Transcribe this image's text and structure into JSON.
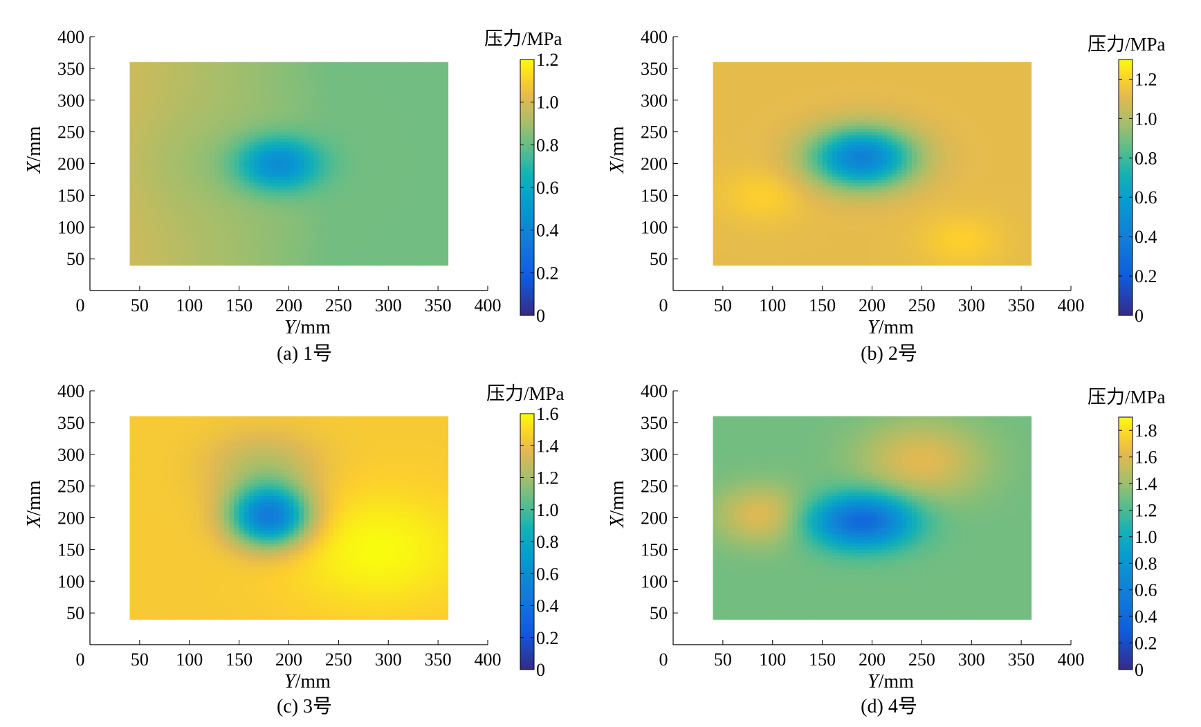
{
  "chart_data": [
    {
      "type": "heatmap",
      "caption": "(a)  1号",
      "xlabel_var": "Y",
      "xlabel_unit": "/mm",
      "ylabel_var": "X",
      "ylabel_unit": "/mm",
      "colorbar_title": "压力/MPa",
      "xlim": [
        0,
        400
      ],
      "ylim": [
        0,
        400
      ],
      "xticks": [
        0,
        50,
        100,
        150,
        200,
        250,
        300,
        350,
        400
      ],
      "yticks": [
        50,
        100,
        150,
        200,
        250,
        300,
        350,
        400
      ],
      "data_extent": {
        "y": [
          40,
          360
        ],
        "x": [
          40,
          360
        ]
      },
      "colorbar_range": [
        0,
        1.2
      ],
      "colorbar_ticks": [
        0,
        0.2,
        0.4,
        0.6,
        0.8,
        1.0,
        1.2
      ],
      "field": {
        "background": 0.82,
        "left_edge": 0.98,
        "center": {
          "y": 190,
          "x": 200,
          "value": 0.45,
          "radius_y": 45,
          "radius_x": 45
        },
        "bumps": [
          {
            "y": 140,
            "x": 200,
            "value": 0.88,
            "radius": 80
          }
        ]
      }
    },
    {
      "type": "heatmap",
      "caption": "(b)  2号",
      "xlabel_var": "Y",
      "xlabel_unit": "/mm",
      "ylabel_var": "X",
      "ylabel_unit": "/mm",
      "colorbar_title": "压力/MPa",
      "xlim": [
        0,
        400
      ],
      "ylim": [
        0,
        400
      ],
      "xticks": [
        0,
        50,
        100,
        150,
        200,
        250,
        300,
        350,
        400
      ],
      "yticks": [
        50,
        100,
        150,
        200,
        250,
        300,
        350,
        400
      ],
      "data_extent": {
        "y": [
          40,
          360
        ],
        "x": [
          40,
          360
        ]
      },
      "colorbar_range": [
        0,
        1.3
      ],
      "colorbar_ticks": [
        0,
        0.2,
        0.4,
        0.6,
        0.8,
        1.0,
        1.2
      ],
      "field": {
        "background": 1.12,
        "left_edge": 1.12,
        "center": {
          "y": 190,
          "x": 210,
          "value": 0.42,
          "radius_y": 55,
          "radius_x": 50
        },
        "bumps": [
          {
            "y": 90,
            "x": 150,
            "value": 1.2,
            "radius": 40
          },
          {
            "y": 290,
            "x": 80,
            "value": 1.2,
            "radius": 40
          }
        ]
      }
    },
    {
      "type": "heatmap",
      "caption": "(c)  3号",
      "xlabel_var": "Y",
      "xlabel_unit": "/mm",
      "ylabel_var": "X",
      "ylabel_unit": "/mm",
      "colorbar_title": "压力/MPa",
      "xlim": [
        0,
        400
      ],
      "ylim": [
        0,
        400
      ],
      "xticks": [
        0,
        50,
        100,
        150,
        200,
        250,
        300,
        350,
        400
      ],
      "yticks": [
        50,
        100,
        150,
        200,
        250,
        300,
        350,
        400
      ],
      "data_extent": {
        "y": [
          40,
          360
        ],
        "x": [
          40,
          360
        ]
      },
      "colorbar_range": [
        0,
        1.6
      ],
      "colorbar_ticks": [
        0,
        0.2,
        0.4,
        0.6,
        0.8,
        1.0,
        1.2,
        1.4,
        1.6
      ],
      "field": {
        "background": 1.45,
        "left_edge": 1.45,
        "center": {
          "y": 180,
          "x": 205,
          "value": 0.45,
          "radius_y": 42,
          "radius_x": 52
        },
        "bumps": [
          {
            "y": 290,
            "x": 150,
            "value": 1.6,
            "radius": 90
          },
          {
            "y": 175,
            "x": 280,
            "value": 1.25,
            "radius": 55
          }
        ]
      }
    },
    {
      "type": "heatmap",
      "caption": "(d)  4号",
      "xlabel_var": "Y",
      "xlabel_unit": "/mm",
      "ylabel_var": "X",
      "ylabel_unit": "/mm",
      "colorbar_title": "压力/MPa",
      "xlim": [
        0,
        400
      ],
      "ylim": [
        0,
        400
      ],
      "xticks": [
        0,
        50,
        100,
        150,
        200,
        250,
        300,
        350,
        400
      ],
      "yticks": [
        50,
        100,
        150,
        200,
        250,
        300,
        350,
        400
      ],
      "data_extent": {
        "y": [
          40,
          360
        ],
        "x": [
          40,
          360
        ]
      },
      "colorbar_range": [
        0,
        1.9
      ],
      "colorbar_ticks": [
        0,
        0.2,
        0.4,
        0.6,
        0.8,
        1.0,
        1.2,
        1.4,
        1.6,
        1.8
      ],
      "field": {
        "background": 1.3,
        "left_edge": 1.3,
        "center": {
          "y": 190,
          "x": 195,
          "value": 0.4,
          "radius_y": 55,
          "radius_x": 45
        },
        "bumps": [
          {
            "y": 250,
            "x": 290,
            "value": 1.62,
            "radius": 60
          },
          {
            "y": 90,
            "x": 205,
            "value": 1.62,
            "radius": 45
          }
        ]
      }
    }
  ]
}
